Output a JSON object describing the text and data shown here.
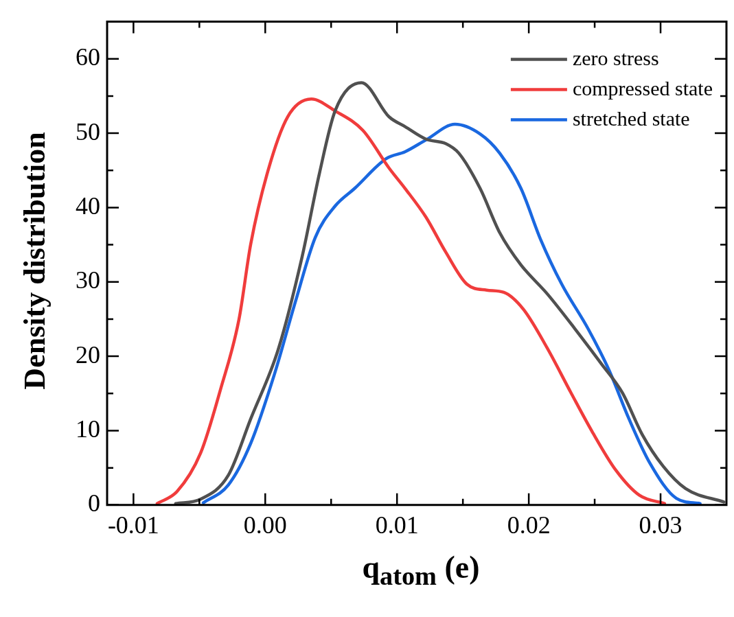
{
  "chart_data": {
    "type": "line",
    "xlabel": "q$_{atom}$ (e)",
    "ylabel": "Density distribution",
    "xlim": [
      -0.012,
      0.035
    ],
    "ylim": [
      0,
      65
    ],
    "xticks": [
      {
        "value": -0.01,
        "label": "-0.01"
      },
      {
        "value": -0.005,
        "label": null
      },
      {
        "value": 0,
        "label": "0.00"
      },
      {
        "value": 0.005,
        "label": null
      },
      {
        "value": 0.01,
        "label": "0.01"
      },
      {
        "value": 0.015,
        "label": null
      },
      {
        "value": 0.02,
        "label": "0.02"
      },
      {
        "value": 0.025,
        "label": null
      },
      {
        "value": 0.03,
        "label": "0.03"
      }
    ],
    "yticks": [
      0,
      {
        "value": 5,
        "label": null
      },
      10,
      {
        "value": 15,
        "label": null
      },
      20,
      {
        "value": 25,
        "label": null
      },
      30,
      {
        "value": 35,
        "label": null
      },
      40,
      {
        "value": 45,
        "label": null
      },
      50,
      {
        "value": 55,
        "label": null
      },
      60
    ],
    "grid": false,
    "legend": "top right",
    "marker": "none",
    "line_style": "solid",
    "series": [
      {
        "name": "zero stress",
        "color": "#505050",
        "x": [
          -0.0068,
          -0.0049,
          -0.0028,
          -0.0011,
          0.001,
          0.0028,
          0.0041,
          0.0053,
          0.0073,
          0.0094,
          0.0106,
          0.0122,
          0.0137,
          0.0147,
          0.0163,
          0.0178,
          0.0194,
          0.0214,
          0.0235,
          0.0255,
          0.0271,
          0.0286,
          0.0302,
          0.0319,
          0.0348
        ],
        "values": [
          0.2,
          0.8,
          4,
          11.6,
          21,
          33.4,
          44.5,
          53,
          56.8,
          52.2,
          50.9,
          49.2,
          48.6,
          47.3,
          42.6,
          36.6,
          32.3,
          28.4,
          23.7,
          19,
          15.1,
          9.5,
          5.2,
          2.2,
          0.4
        ]
      },
      {
        "name": "compressed state",
        "color": "#f03c3c",
        "x": [
          -0.0082,
          -0.0067,
          -0.0049,
          -0.0034,
          -0.002,
          -0.0011,
          0.0002,
          0.0017,
          0.0035,
          0.0053,
          0.0074,
          0.0094,
          0.0106,
          0.0122,
          0.0137,
          0.0153,
          0.0168,
          0.0181,
          0.0196,
          0.0214,
          0.0232,
          0.0248,
          0.0266,
          0.0284,
          0.0303
        ],
        "values": [
          0.2,
          1.8,
          7,
          15.5,
          24.9,
          35.1,
          44.9,
          52.2,
          54.6,
          53,
          50.4,
          45.3,
          42.6,
          38.7,
          34,
          29.7,
          28.9,
          28.6,
          26.3,
          21.1,
          15.1,
          9.9,
          4.7,
          1.3,
          0.2
        ]
      },
      {
        "name": "stretched state",
        "color": "#1a68e0",
        "x": [
          -0.0047,
          -0.0028,
          -0.0011,
          0.0007,
          0.0023,
          0.0038,
          0.0053,
          0.0068,
          0.0092,
          0.0106,
          0.0122,
          0.0144,
          0.0163,
          0.0178,
          0.0194,
          0.0209,
          0.0225,
          0.0245,
          0.0261,
          0.0276,
          0.0292,
          0.0312,
          0.033
        ],
        "values": [
          0.3,
          2.7,
          8.3,
          17.6,
          27.4,
          36,
          40.2,
          42.6,
          46.6,
          47.5,
          49.1,
          51.2,
          49.9,
          47.3,
          42.6,
          35.7,
          29.7,
          23.7,
          18.1,
          11.6,
          5.6,
          0.9,
          0.2
        ]
      }
    ]
  }
}
